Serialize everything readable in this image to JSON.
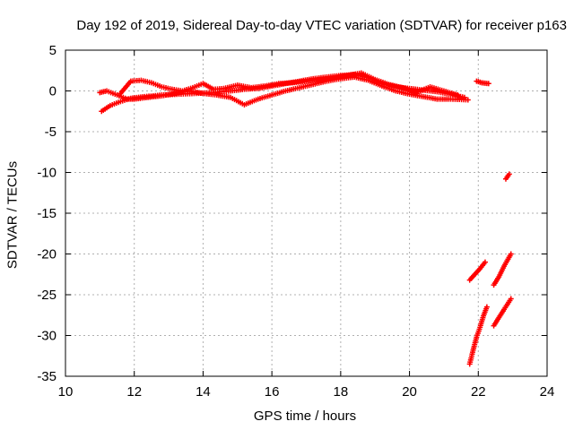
{
  "chart_data": {
    "type": "scatter",
    "title": "Day 192 of 2019, Sidereal Day-to-day VTEC variation (SDTVAR) for receiver p163",
    "xlabel": "GPS time / hours",
    "ylabel": "SDTVAR / TECUs",
    "xlim": [
      10,
      24
    ],
    "ylim": [
      -35,
      5
    ],
    "xticks": [
      10,
      12,
      14,
      16,
      18,
      20,
      22,
      24
    ],
    "yticks": [
      5,
      0,
      -5,
      -10,
      -15,
      -20,
      -25,
      -30,
      -35
    ],
    "grid": true,
    "marker": "plus",
    "color": "#ff0000",
    "series": [
      {
        "segments": [
          [
            [
              11.05,
              -2.5
            ],
            [
              11.3,
              -1.8
            ],
            [
              11.6,
              -1.3
            ],
            [
              11.9,
              -0.9
            ],
            [
              12.3,
              -0.7
            ],
            [
              12.8,
              -0.5
            ],
            [
              13.3,
              -0.4
            ],
            [
              13.8,
              -0.3
            ],
            [
              14.3,
              -0.2
            ],
            [
              14.8,
              0.0
            ],
            [
              15.2,
              0.2
            ],
            [
              15.6,
              0.3
            ],
            [
              16.0,
              0.6
            ],
            [
              16.4,
              0.9
            ],
            [
              16.8,
              1.2
            ],
            [
              17.2,
              1.5
            ],
            [
              17.6,
              1.7
            ],
            [
              18.0,
              1.9
            ],
            [
              18.4,
              2.0
            ],
            [
              18.8,
              1.6
            ],
            [
              19.2,
              0.9
            ],
            [
              19.6,
              0.5
            ],
            [
              20.0,
              0.3
            ],
            [
              20.4,
              0.1
            ],
            [
              20.8,
              -0.1
            ],
            [
              21.2,
              -0.4
            ],
            [
              21.6,
              -0.8
            ]
          ],
          [
            [
              11.0,
              -0.2
            ],
            [
              11.2,
              0.0
            ],
            [
              11.5,
              -0.5
            ],
            [
              11.8,
              -1.0
            ],
            [
              12.0,
              -1.0
            ],
            [
              12.4,
              -0.8
            ],
            [
              12.8,
              -0.6
            ],
            [
              13.2,
              -0.3
            ],
            [
              13.6,
              0.0
            ],
            [
              14.0,
              -0.3
            ],
            [
              14.4,
              -0.5
            ],
            [
              14.8,
              -0.8
            ],
            [
              15.2,
              -1.7
            ],
            [
              15.6,
              -1.0
            ],
            [
              16.0,
              -0.5
            ],
            [
              16.4,
              0.0
            ],
            [
              16.8,
              0.4
            ],
            [
              17.2,
              0.8
            ],
            [
              17.6,
              1.2
            ],
            [
              18.0,
              1.5
            ],
            [
              18.4,
              1.7
            ],
            [
              18.8,
              1.3
            ],
            [
              19.2,
              0.6
            ],
            [
              19.6,
              0.0
            ],
            [
              20.0,
              -0.4
            ],
            [
              20.4,
              -0.7
            ],
            [
              20.8,
              -1.0
            ],
            [
              21.2,
              -1.0
            ],
            [
              21.7,
              -1.1
            ]
          ],
          [
            [
              11.6,
              -0.3
            ],
            [
              11.9,
              1.2
            ],
            [
              12.2,
              1.3
            ],
            [
              12.5,
              1.0
            ],
            [
              12.8,
              0.5
            ],
            [
              13.1,
              0.2
            ],
            [
              13.4,
              0.0
            ],
            [
              13.7,
              0.4
            ],
            [
              14.0,
              0.9
            ],
            [
              14.3,
              0.2
            ],
            [
              14.6,
              0.3
            ],
            [
              15.0,
              0.7
            ],
            [
              15.4,
              0.4
            ],
            [
              15.8,
              0.6
            ],
            [
              16.2,
              0.9
            ],
            [
              16.6,
              1.0
            ],
            [
              17.0,
              1.2
            ],
            [
              17.4,
              1.4
            ],
            [
              17.8,
              1.6
            ],
            [
              18.2,
              1.9
            ],
            [
              18.6,
              2.2
            ],
            [
              19.0,
              1.4
            ],
            [
              19.4,
              0.8
            ],
            [
              19.8,
              0.4
            ],
            [
              20.2,
              -0.2
            ],
            [
              20.6,
              0.5
            ],
            [
              21.0,
              0.0
            ],
            [
              21.4,
              -0.5
            ]
          ],
          [
            [
              21.95,
              1.2
            ],
            [
              22.1,
              1.0
            ],
            [
              22.3,
              0.9
            ]
          ],
          [
            [
              22.8,
              -10.8
            ],
            [
              22.9,
              -10.2
            ]
          ],
          [
            [
              21.75,
              -23.2
            ],
            [
              21.9,
              -22.5
            ],
            [
              22.05,
              -21.8
            ],
            [
              22.2,
              -21.0
            ]
          ],
          [
            [
              22.45,
              -23.8
            ],
            [
              22.6,
              -22.8
            ],
            [
              22.75,
              -21.5
            ],
            [
              22.95,
              -20.0
            ]
          ],
          [
            [
              21.75,
              -33.5
            ],
            [
              21.85,
              -31.8
            ],
            [
              21.95,
              -30.2
            ],
            [
              22.05,
              -29.0
            ],
            [
              22.15,
              -27.6
            ],
            [
              22.25,
              -26.5
            ]
          ],
          [
            [
              22.45,
              -28.8
            ],
            [
              22.6,
              -27.8
            ],
            [
              22.75,
              -26.8
            ],
            [
              22.95,
              -25.5
            ]
          ]
        ]
      }
    ]
  }
}
